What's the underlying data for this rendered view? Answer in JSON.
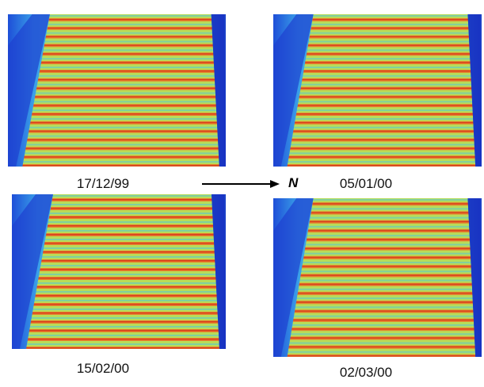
{
  "panels": [
    {
      "date": "17/12/99"
    },
    {
      "date": "05/01/00"
    },
    {
      "date": "15/02/00"
    },
    {
      "date": "02/03/00"
    }
  ],
  "north_label": "N"
}
